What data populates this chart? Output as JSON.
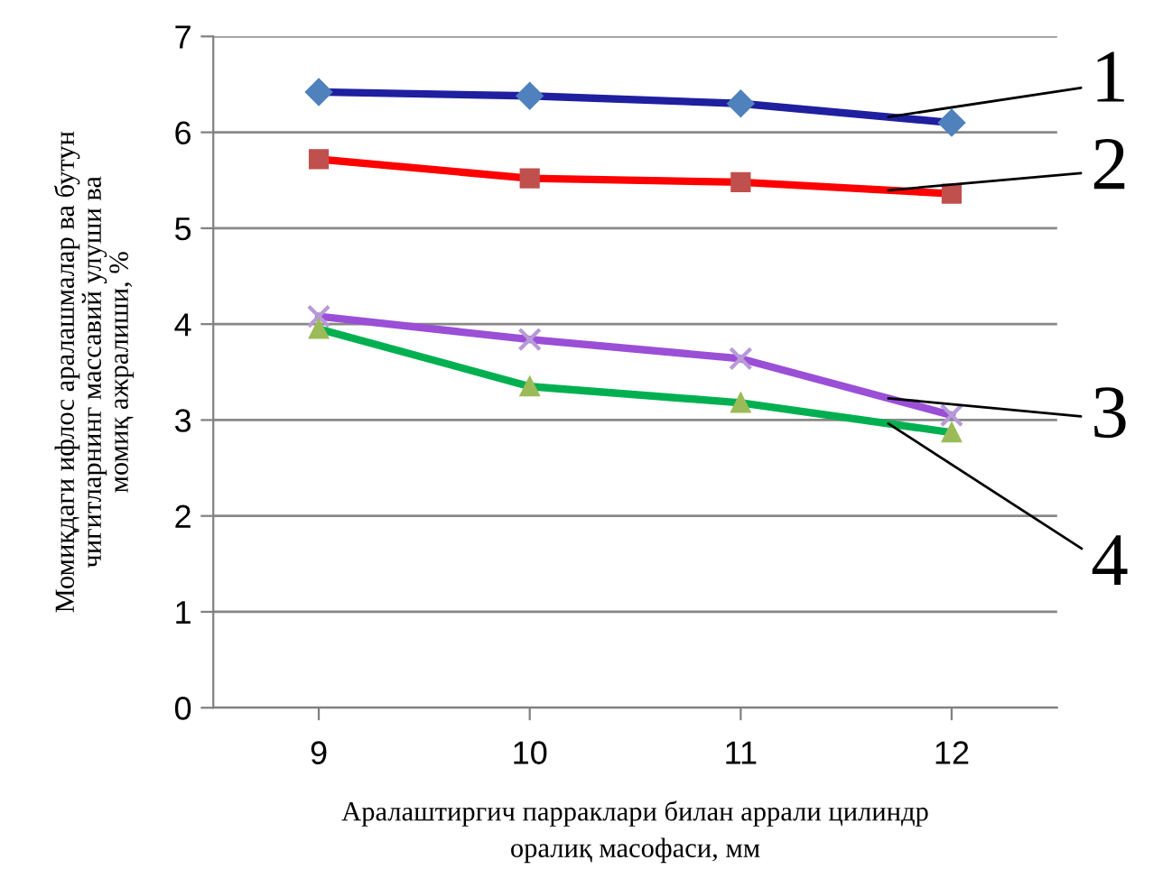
{
  "chart_data": {
    "type": "line",
    "xlabel": "Аралаштиргич парраклари билан аррали цилиндр\nоралиқ масофаси, мм",
    "ylabel": "Момиқдаги ифлос аралашмалар ва бутун\nчигитларнинг массавий улуши ва\nмомиқ ажралиши, %",
    "categories": [
      "9",
      "10",
      "11",
      "12"
    ],
    "ylim": [
      0,
      7
    ],
    "yticks": [
      0,
      1,
      2,
      3,
      4,
      5,
      6,
      7
    ],
    "grid": "y",
    "legend": false,
    "series": [
      {
        "name": "1",
        "color": "#1f1fa0",
        "marker": "diamond",
        "values": [
          6.42,
          6.38,
          6.3,
          6.1
        ]
      },
      {
        "name": "2",
        "color": "#ff0000",
        "marker": "square",
        "values": [
          5.72,
          5.52,
          5.48,
          5.36
        ]
      },
      {
        "name": "3",
        "color": "#9a4fd6",
        "marker": "cross",
        "values": [
          4.08,
          3.84,
          3.64,
          3.05
        ]
      },
      {
        "name": "4",
        "color": "#00b050",
        "marker": "triangle",
        "values": [
          3.95,
          3.35,
          3.18,
          2.87
        ]
      }
    ]
  }
}
